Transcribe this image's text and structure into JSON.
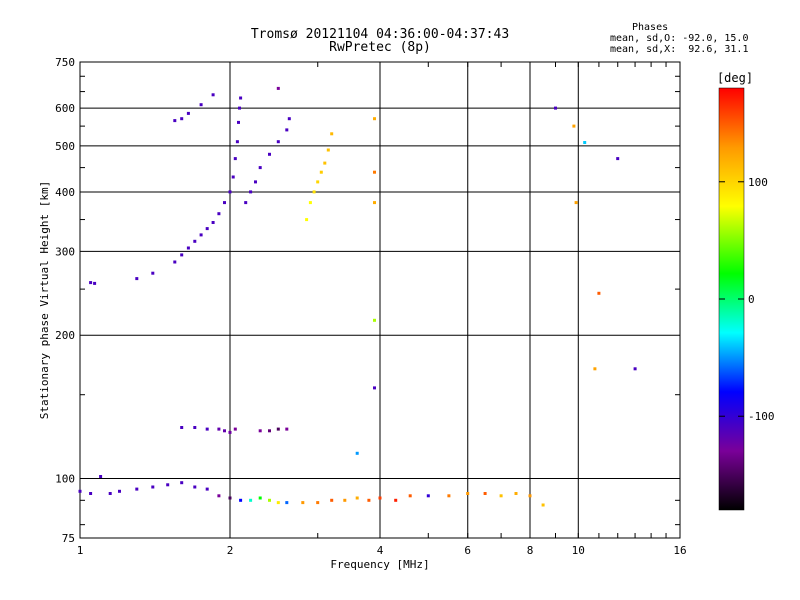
{
  "header": {
    "title_line1": "Tromsø 20121104 04:36:00-04:37:43",
    "title_line2": "RwPretec (8p)",
    "phases_title": "Phases",
    "phases_o": "mean, sd,O: -92.0, 15.0",
    "phases_x": "mean, sd,X:  92.6, 31.1"
  },
  "colorbar": {
    "label": "[deg]",
    "range": [
      -180,
      180
    ],
    "ticks": [
      100,
      0,
      -100
    ],
    "tick_labels": [
      "100",
      "0",
      "-100"
    ]
  },
  "chart_data": {
    "type": "scatter",
    "title": "Tromsø 20121104 04:36:00-04:37:43",
    "subtitle": "RwPretec (8p)",
    "xlabel": "Frequency [MHz]",
    "ylabel": "Stationary phase Virtual Height [km]",
    "xscale": "log",
    "yscale": "log",
    "xlim": [
      1,
      16
    ],
    "ylim": [
      75,
      750
    ],
    "xticks": [
      1,
      2,
      4,
      6,
      8,
      10,
      16
    ],
    "xtick_labels": [
      "1",
      "2",
      "4",
      "6",
      "8",
      "10",
      "16"
    ],
    "yticks": [
      75,
      100,
      200,
      300,
      400,
      500,
      600,
      750
    ],
    "ytick_labels": [
      "75",
      "100",
      "200",
      "300",
      "400",
      "500",
      "600",
      "750"
    ],
    "grid": true,
    "color_variable": "phase [deg]",
    "points": [
      {
        "x": 1.05,
        "y": 258,
        "phase": -110
      },
      {
        "x": 1.07,
        "y": 257,
        "phase": -110
      },
      {
        "x": 1.3,
        "y": 263,
        "phase": -110
      },
      {
        "x": 1.4,
        "y": 270,
        "phase": -110
      },
      {
        "x": 1.55,
        "y": 285,
        "phase": -110
      },
      {
        "x": 1.6,
        "y": 295,
        "phase": -110
      },
      {
        "x": 1.65,
        "y": 305,
        "phase": -110
      },
      {
        "x": 1.7,
        "y": 315,
        "phase": -110
      },
      {
        "x": 1.75,
        "y": 325,
        "phase": -110
      },
      {
        "x": 1.8,
        "y": 335,
        "phase": -110
      },
      {
        "x": 1.85,
        "y": 345,
        "phase": -110
      },
      {
        "x": 1.9,
        "y": 360,
        "phase": -110
      },
      {
        "x": 1.95,
        "y": 380,
        "phase": -110
      },
      {
        "x": 2.0,
        "y": 400,
        "phase": -110
      },
      {
        "x": 2.03,
        "y": 430,
        "phase": -110
      },
      {
        "x": 2.05,
        "y": 470,
        "phase": -110
      },
      {
        "x": 2.07,
        "y": 510,
        "phase": -110
      },
      {
        "x": 2.08,
        "y": 560,
        "phase": -110
      },
      {
        "x": 2.09,
        "y": 600,
        "phase": -110
      },
      {
        "x": 2.1,
        "y": 630,
        "phase": -110
      },
      {
        "x": 2.15,
        "y": 380,
        "phase": -110
      },
      {
        "x": 2.2,
        "y": 400,
        "phase": -110
      },
      {
        "x": 2.25,
        "y": 420,
        "phase": -110
      },
      {
        "x": 2.3,
        "y": 450,
        "phase": -110
      },
      {
        "x": 2.4,
        "y": 480,
        "phase": -110
      },
      {
        "x": 2.5,
        "y": 510,
        "phase": -110
      },
      {
        "x": 2.6,
        "y": 540,
        "phase": -110
      },
      {
        "x": 2.63,
        "y": 570,
        "phase": -110
      },
      {
        "x": 2.5,
        "y": 660,
        "phase": -130
      },
      {
        "x": 1.55,
        "y": 565,
        "phase": -110
      },
      {
        "x": 1.6,
        "y": 570,
        "phase": -110
      },
      {
        "x": 1.65,
        "y": 585,
        "phase": -110
      },
      {
        "x": 1.75,
        "y": 610,
        "phase": -110
      },
      {
        "x": 1.85,
        "y": 640,
        "phase": -110
      },
      {
        "x": 2.85,
        "y": 350,
        "phase": 80
      },
      {
        "x": 2.9,
        "y": 380,
        "phase": 80
      },
      {
        "x": 2.95,
        "y": 400,
        "phase": 95
      },
      {
        "x": 3.0,
        "y": 420,
        "phase": 100
      },
      {
        "x": 3.05,
        "y": 440,
        "phase": 105
      },
      {
        "x": 3.1,
        "y": 460,
        "phase": 110
      },
      {
        "x": 3.15,
        "y": 490,
        "phase": 110
      },
      {
        "x": 3.2,
        "y": 530,
        "phase": 115
      },
      {
        "x": 3.9,
        "y": 570,
        "phase": 120
      },
      {
        "x": 3.9,
        "y": 440,
        "phase": 140
      },
      {
        "x": 3.9,
        "y": 380,
        "phase": 120
      },
      {
        "x": 3.9,
        "y": 215,
        "phase": 60
      },
      {
        "x": 3.9,
        "y": 155,
        "phase": -110
      },
      {
        "x": 3.6,
        "y": 113,
        "phase": -50
      },
      {
        "x": 9.0,
        "y": 600,
        "phase": -110
      },
      {
        "x": 9.8,
        "y": 550,
        "phase": 125
      },
      {
        "x": 10.3,
        "y": 508,
        "phase": -40
      },
      {
        "x": 12.0,
        "y": 470,
        "phase": -110
      },
      {
        "x": 9.9,
        "y": 380,
        "phase": 125
      },
      {
        "x": 11.0,
        "y": 245,
        "phase": 150
      },
      {
        "x": 10.8,
        "y": 170,
        "phase": 125
      },
      {
        "x": 13.0,
        "y": 170,
        "phase": -110
      },
      {
        "x": 1.6,
        "y": 128,
        "phase": -110
      },
      {
        "x": 1.7,
        "y": 128,
        "phase": -110
      },
      {
        "x": 1.8,
        "y": 127,
        "phase": -110
      },
      {
        "x": 1.9,
        "y": 127,
        "phase": -120
      },
      {
        "x": 1.95,
        "y": 126,
        "phase": -120
      },
      {
        "x": 2.0,
        "y": 125,
        "phase": -125
      },
      {
        "x": 2.05,
        "y": 127,
        "phase": -130
      },
      {
        "x": 2.3,
        "y": 126,
        "phase": -130
      },
      {
        "x": 2.4,
        "y": 126,
        "phase": -140
      },
      {
        "x": 2.5,
        "y": 127,
        "phase": -150
      },
      {
        "x": 2.6,
        "y": 127,
        "phase": -130
      },
      {
        "x": 1.0,
        "y": 94,
        "phase": -110
      },
      {
        "x": 1.05,
        "y": 93,
        "phase": -110
      },
      {
        "x": 1.1,
        "y": 101,
        "phase": -110
      },
      {
        "x": 1.15,
        "y": 93,
        "phase": -110
      },
      {
        "x": 1.2,
        "y": 94,
        "phase": -110
      },
      {
        "x": 1.3,
        "y": 95,
        "phase": -110
      },
      {
        "x": 1.4,
        "y": 96,
        "phase": -110
      },
      {
        "x": 1.5,
        "y": 97,
        "phase": -110
      },
      {
        "x": 1.6,
        "y": 98,
        "phase": -110
      },
      {
        "x": 1.7,
        "y": 96,
        "phase": -110
      },
      {
        "x": 1.8,
        "y": 95,
        "phase": -110
      },
      {
        "x": 1.9,
        "y": 92,
        "phase": -130
      },
      {
        "x": 2.0,
        "y": 91,
        "phase": -150
      },
      {
        "x": 2.1,
        "y": 90,
        "phase": -80
      },
      {
        "x": 2.2,
        "y": 90,
        "phase": -20
      },
      {
        "x": 2.3,
        "y": 91,
        "phase": 20
      },
      {
        "x": 2.4,
        "y": 90,
        "phase": 60
      },
      {
        "x": 2.5,
        "y": 89,
        "phase": 90
      },
      {
        "x": 2.6,
        "y": 89,
        "phase": -60
      },
      {
        "x": 2.8,
        "y": 89,
        "phase": 130
      },
      {
        "x": 3.0,
        "y": 89,
        "phase": 140
      },
      {
        "x": 3.2,
        "y": 90,
        "phase": 150
      },
      {
        "x": 3.4,
        "y": 90,
        "phase": 130
      },
      {
        "x": 3.6,
        "y": 91,
        "phase": 120
      },
      {
        "x": 3.8,
        "y": 90,
        "phase": 150
      },
      {
        "x": 4.0,
        "y": 91,
        "phase": 160
      },
      {
        "x": 4.3,
        "y": 90,
        "phase": 170
      },
      {
        "x": 4.6,
        "y": 92,
        "phase": 150
      },
      {
        "x": 5.0,
        "y": 92,
        "phase": -100
      },
      {
        "x": 5.5,
        "y": 92,
        "phase": 140
      },
      {
        "x": 6.0,
        "y": 93,
        "phase": 130
      },
      {
        "x": 6.5,
        "y": 93,
        "phase": 150
      },
      {
        "x": 7.0,
        "y": 92,
        "phase": 110
      },
      {
        "x": 7.5,
        "y": 93,
        "phase": 120
      },
      {
        "x": 8.0,
        "y": 92,
        "phase": 130
      },
      {
        "x": 8.5,
        "y": 88,
        "phase": 110
      }
    ]
  }
}
